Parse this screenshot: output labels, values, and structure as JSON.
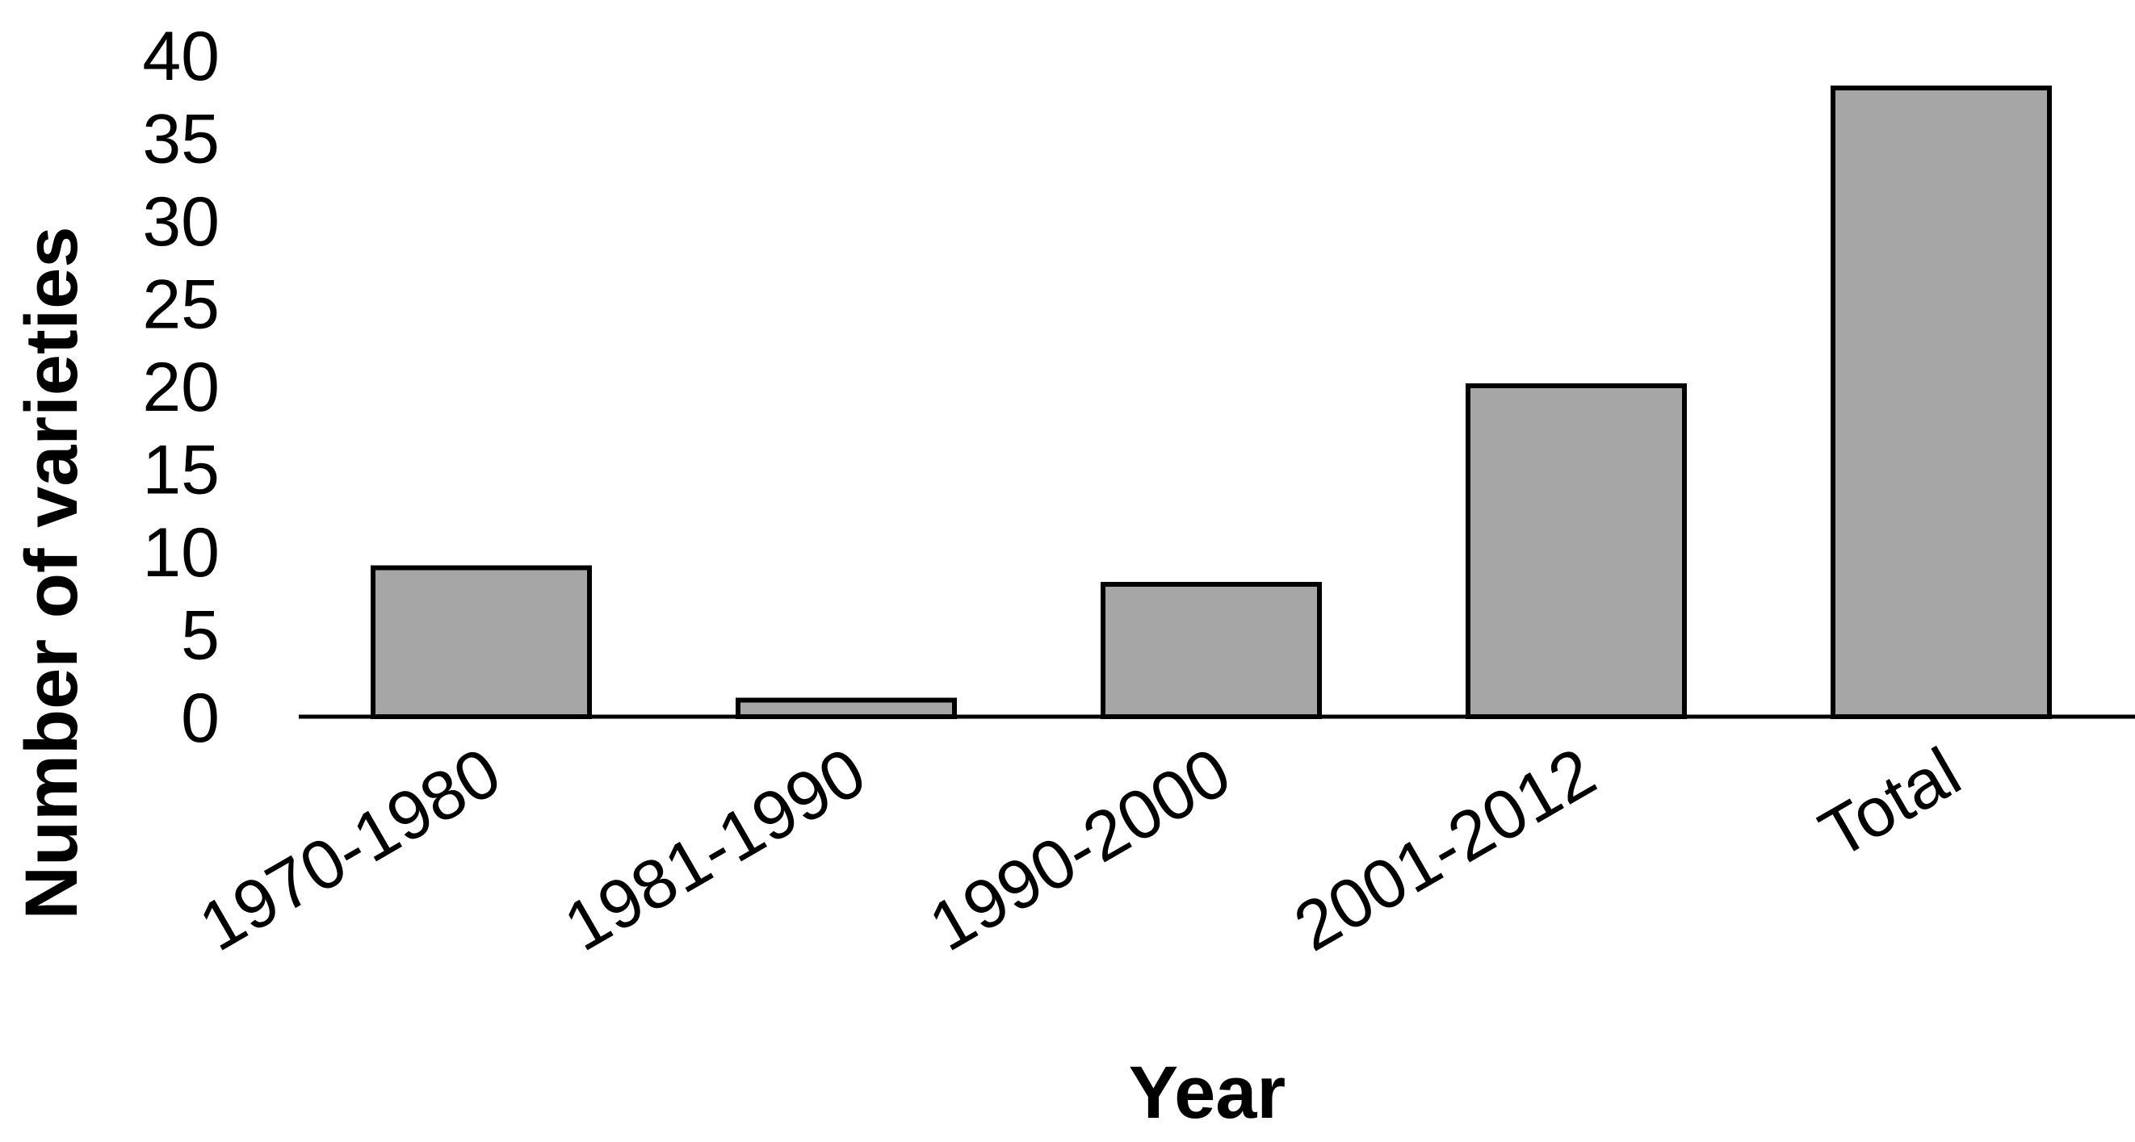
{
  "chart_data": {
    "type": "bar",
    "categories": [
      "1970-1980",
      "1981-1990",
      "1990-2000",
      "2001-2012",
      "Total"
    ],
    "values": [
      9,
      1,
      8,
      20,
      38
    ],
    "title": "",
    "xlabel": "Year",
    "ylabel": "Number of varieties",
    "ylim": [
      0,
      40
    ],
    "yticks": [
      0,
      5,
      10,
      15,
      20,
      25,
      30,
      35,
      40
    ],
    "grid": false,
    "legend": "none"
  },
  "colors": {
    "bar_fill": "#a6a6a6",
    "bar_stroke": "#000000",
    "axis": "#000000",
    "text": "#000000",
    "background": "#ffffff"
  }
}
